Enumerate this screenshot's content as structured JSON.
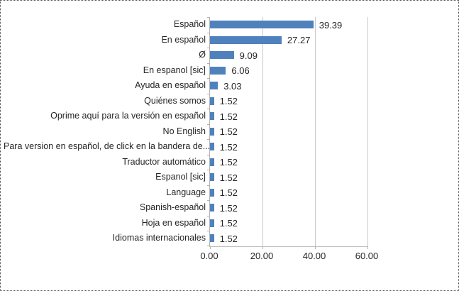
{
  "chart_data": {
    "type": "bar",
    "orientation": "horizontal",
    "title": "",
    "xlabel": "",
    "ylabel": "",
    "categories": [
      "Español",
      "En español",
      "Ø",
      "En espanol [sic]",
      "Ayuda en español",
      "Quiénes somos",
      "Oprime aquí para la versión en español",
      "No English",
      "Para version en español, de click en la bandera de...",
      "Traductor automático",
      "Espanol [sic]",
      "Language",
      "Spanish-español",
      "Hoja en español",
      "Idiomas internacionales"
    ],
    "values": [
      39.39,
      27.27,
      9.09,
      6.06,
      3.03,
      1.52,
      1.52,
      1.52,
      1.52,
      1.52,
      1.52,
      1.52,
      1.52,
      1.52,
      1.52
    ],
    "value_labels": [
      "39.39",
      "27.27",
      "9.09",
      "6.06",
      "3.03",
      "1.52",
      "1.52",
      "1.52",
      "1.52",
      "1.52",
      "1.52",
      "1.52",
      "1.52",
      "1.52",
      "1.52"
    ],
    "xlim": [
      0,
      60
    ],
    "x_tick_values": [
      0,
      20,
      40,
      60
    ],
    "x_tick_labels": [
      "0.00",
      "20.00",
      "40.00",
      "60.00"
    ],
    "grid": true,
    "legend": false,
    "bar_color": "#4f81bd",
    "gridline_color": "#c9c9c9",
    "axis_color": "#b3b3b3",
    "text_color": "#262626"
  }
}
